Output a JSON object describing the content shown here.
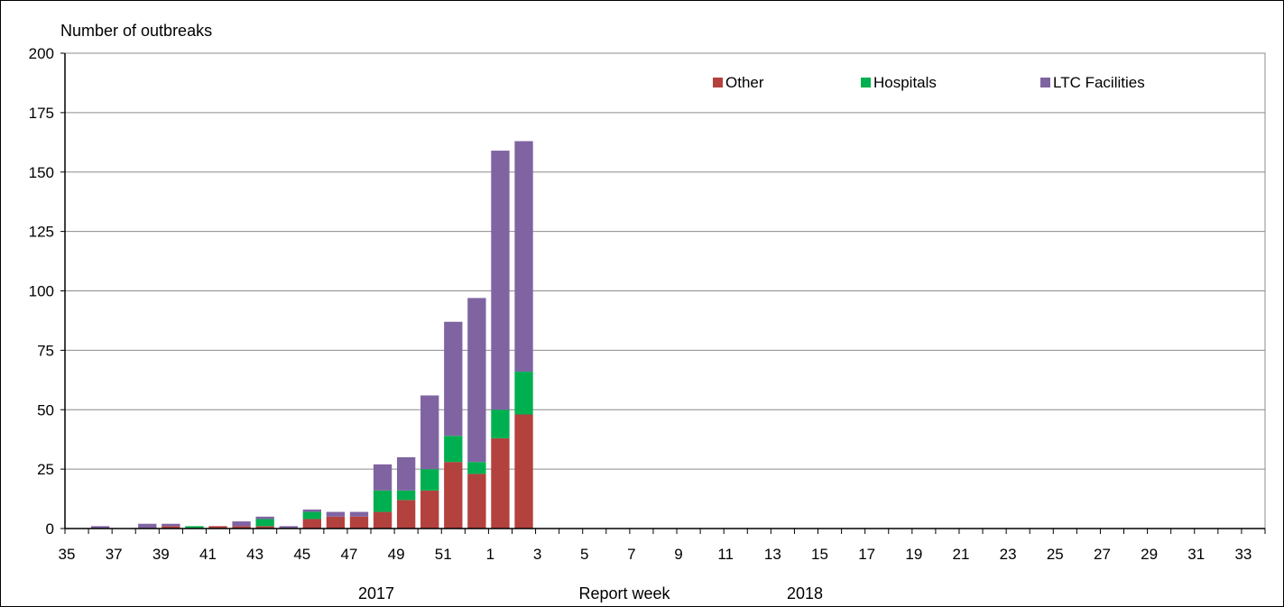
{
  "chart_data": {
    "type": "bar",
    "stacked": true,
    "ylabel": "Number of outbreaks",
    "xlabel": "Report week",
    "ylim": [
      0,
      200
    ],
    "yticks": [
      0,
      25,
      50,
      75,
      100,
      125,
      150,
      175,
      200
    ],
    "grid": true,
    "legend_position": "top-right",
    "year_labels": [
      "2017",
      "2018"
    ],
    "categories": [
      "35",
      "36",
      "37",
      "38",
      "39",
      "40",
      "41",
      "42",
      "43",
      "44",
      "45",
      "46",
      "47",
      "48",
      "49",
      "50",
      "51",
      "52",
      "1",
      "2",
      "3",
      "4",
      "5",
      "6",
      "7",
      "8",
      "9",
      "10",
      "11",
      "12",
      "13",
      "14",
      "15",
      "16",
      "17",
      "18",
      "19",
      "20",
      "21",
      "22",
      "23",
      "24",
      "25",
      "26",
      "27",
      "28",
      "29",
      "30",
      "31",
      "32",
      "33"
    ],
    "tick_labels": [
      "35",
      "37",
      "39",
      "41",
      "43",
      "45",
      "47",
      "49",
      "51",
      "1",
      "3",
      "5",
      "7",
      "9",
      "11",
      "13",
      "15",
      "17",
      "19",
      "21",
      "23",
      "25",
      "27",
      "29",
      "31",
      "33"
    ],
    "series": [
      {
        "name": "Other",
        "color": "#B3413E",
        "values": [
          0,
          0,
          0,
          0,
          1,
          0,
          1,
          1,
          1,
          0,
          4,
          5,
          5,
          7,
          12,
          16,
          28,
          23,
          38,
          48,
          0,
          0,
          0,
          0,
          0,
          0,
          0,
          0,
          0,
          0,
          0,
          0,
          0,
          0,
          0,
          0,
          0,
          0,
          0,
          0,
          0,
          0,
          0,
          0,
          0,
          0,
          0,
          0,
          0,
          0,
          0
        ]
      },
      {
        "name": "Hospitals",
        "color": "#00B050",
        "values": [
          0,
          0,
          0,
          0,
          0,
          1,
          0,
          0,
          3,
          0,
          3,
          0,
          0,
          9,
          4,
          9,
          11,
          5,
          12,
          18,
          0,
          0,
          0,
          0,
          0,
          0,
          0,
          0,
          0,
          0,
          0,
          0,
          0,
          0,
          0,
          0,
          0,
          0,
          0,
          0,
          0,
          0,
          0,
          0,
          0,
          0,
          0,
          0,
          0,
          0,
          0
        ]
      },
      {
        "name": "LTC Facilities",
        "color": "#8064A2",
        "values": [
          0,
          1,
          0,
          2,
          1,
          0,
          0,
          2,
          1,
          1,
          1,
          2,
          2,
          11,
          14,
          31,
          48,
          69,
          109,
          97,
          0,
          0,
          0,
          0,
          0,
          0,
          0,
          0,
          0,
          0,
          0,
          0,
          0,
          0,
          0,
          0,
          0,
          0,
          0,
          0,
          0,
          0,
          0,
          0,
          0,
          0,
          0,
          0,
          0,
          0,
          0
        ]
      }
    ]
  }
}
